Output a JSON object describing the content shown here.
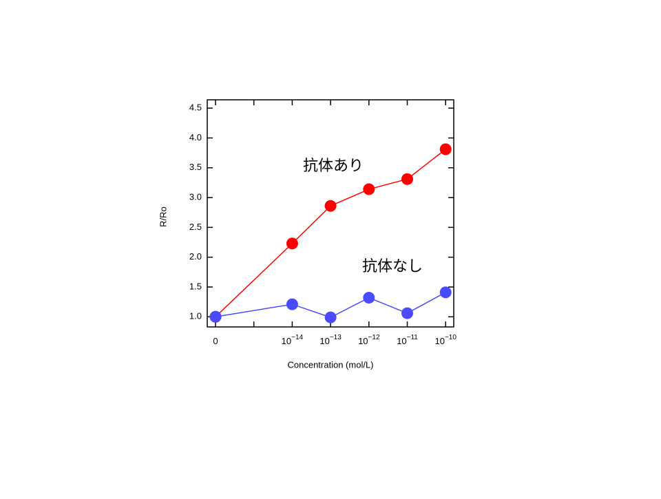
{
  "chart_data": {
    "type": "line",
    "y_label": "R/Ro",
    "x_label": "Concentration (mol/L)",
    "categories": [
      {
        "base": "0"
      },
      {
        "base": "10",
        "exp": "−14"
      },
      {
        "base": "10",
        "exp": "−13"
      },
      {
        "base": "10",
        "exp": "−12"
      },
      {
        "base": "10",
        "exp": "−11"
      },
      {
        "base": "10",
        "exp": "−10"
      }
    ],
    "series": [
      {
        "name": "抗体あり",
        "color": "#ff0000",
        "values": [
          1.0,
          2.23,
          2.86,
          3.14,
          3.31,
          3.81
        ]
      },
      {
        "name": "抗体なし",
        "color": "#4a4aff",
        "values": [
          1.0,
          1.21,
          0.99,
          1.32,
          1.06,
          1.41
        ]
      }
    ],
    "ylim": [
      0.83,
      4.64
    ],
    "yticks": [
      {
        "value": 1,
        "label": "1.0"
      },
      1.5,
      {
        "value": 2,
        "label": "2.0"
      },
      2.5,
      {
        "value": 3,
        "label": "3.0"
      },
      3.5,
      {
        "value": 4,
        "label": "4.0"
      },
      4.5
    ]
  }
}
